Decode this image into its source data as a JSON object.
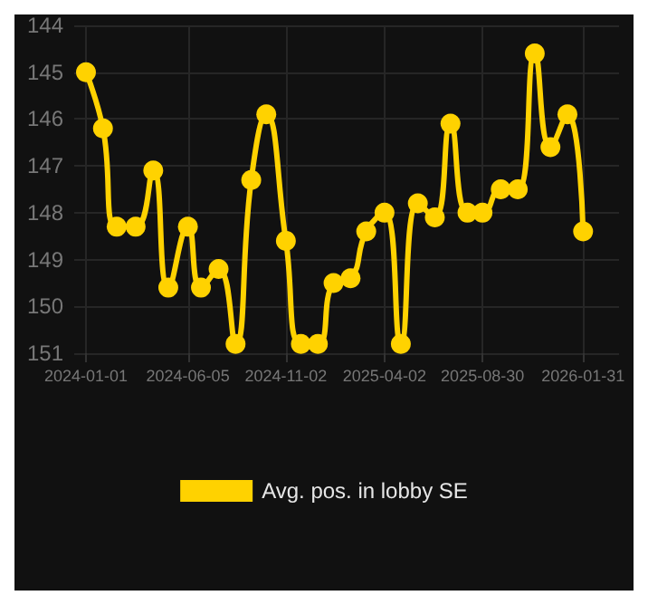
{
  "chart_data": {
    "type": "line",
    "x": [
      "2024-01-01",
      "2024-01-27",
      "2024-02-17",
      "2024-03-17",
      "2024-04-13",
      "2024-05-06",
      "2024-06-05",
      "2024-06-25",
      "2024-07-22",
      "2024-08-17",
      "2024-09-10",
      "2024-10-03",
      "2024-11-02",
      "2024-11-25",
      "2024-12-21",
      "2025-01-14",
      "2025-02-09",
      "2025-03-05",
      "2025-04-02",
      "2025-04-27",
      "2025-05-23",
      "2025-06-18",
      "2025-07-12",
      "2025-08-07",
      "2025-08-30",
      "2025-09-27",
      "2025-10-23",
      "2025-11-18",
      "2025-12-12",
      "2026-01-07",
      "2026-01-31"
    ],
    "series": [
      {
        "name": "Avg. pos. in lobby SE",
        "color": "#ffd200",
        "values": [
          145,
          146.2,
          148.3,
          148.3,
          147.1,
          149.6,
          148.3,
          149.6,
          149.2,
          150.8,
          147.3,
          145.9,
          148.6,
          150.8,
          150.8,
          149.5,
          149.4,
          148.4,
          148.0,
          150.8,
          147.8,
          148.1,
          146.1,
          148.0,
          148.0,
          147.5,
          147.5,
          144.6,
          146.6,
          145.9,
          148.4
        ]
      }
    ],
    "xlim": [
      "2023-12-14",
      "2026-03-27"
    ],
    "xticks": [
      "2024-01-01",
      "2024-06-05",
      "2024-11-02",
      "2025-04-02",
      "2025-08-30",
      "2026-01-31"
    ],
    "ylim": [
      151,
      144
    ],
    "yticks": [
      144,
      145,
      146,
      147,
      148,
      149,
      150,
      151
    ],
    "grid": true,
    "legend": "bottom",
    "marker": "circle",
    "line_style": "solid"
  }
}
